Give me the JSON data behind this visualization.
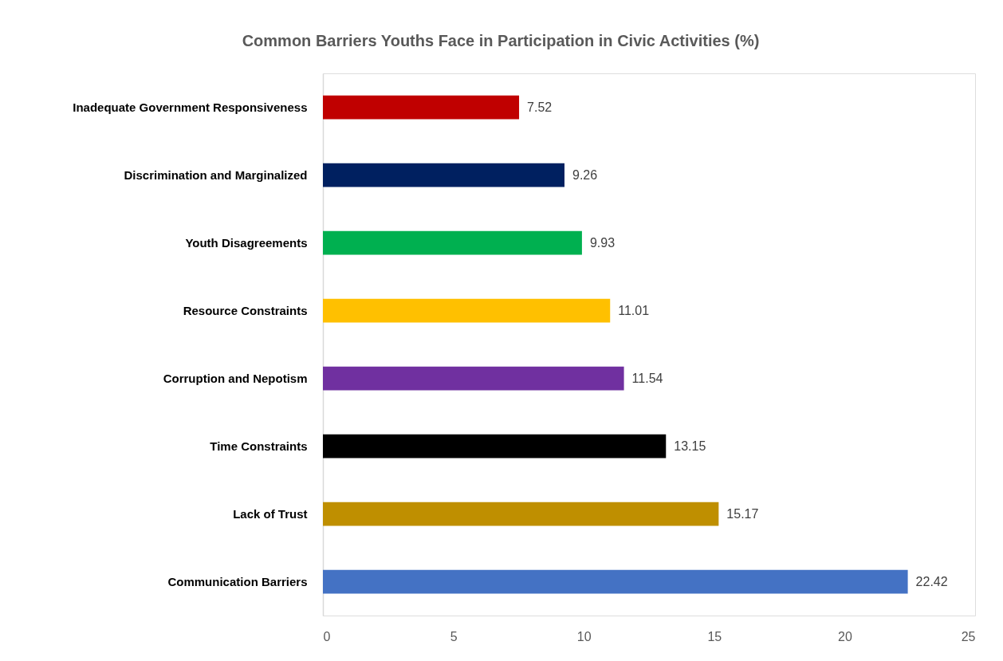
{
  "chart_data": {
    "type": "bar",
    "orientation": "horizontal",
    "title": "Common Barriers Youths Face in Participation in Civic Activities (%)",
    "categories": [
      "Inadequate Government Responsiveness",
      "Discrimination and Marginalized",
      "Youth Disagreements",
      "Resource Constraints",
      "Corruption and Nepotism",
      "Time Constraints",
      "Lack of Trust",
      "Communication Barriers"
    ],
    "values": [
      7.52,
      9.26,
      9.93,
      11.01,
      11.54,
      13.15,
      15.17,
      22.42
    ],
    "colors": [
      "#c00000",
      "#002060",
      "#00b050",
      "#ffc000",
      "#7030a0",
      "#000000",
      "#bf8f00",
      "#4472c4"
    ],
    "xlim": [
      0,
      25
    ],
    "xticks": [
      0,
      5,
      10,
      15,
      20,
      25
    ],
    "data_labels": true
  }
}
